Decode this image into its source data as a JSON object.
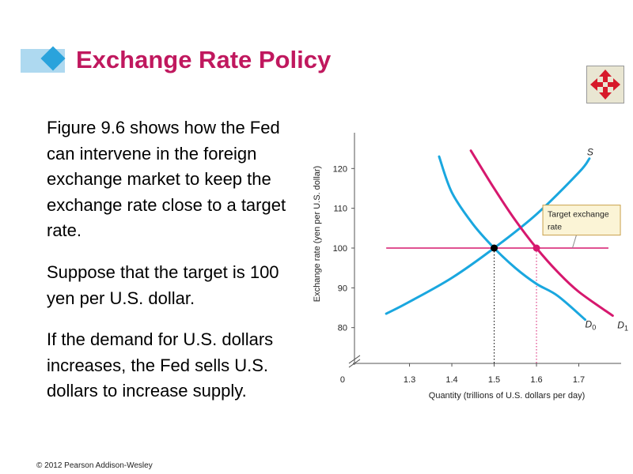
{
  "slide": {
    "title": "Exchange Rate Policy",
    "paragraphs": [
      "Figure 9.6 shows how the Fed can intervene in the foreign exchange market to keep the exchange rate close to a target rate.",
      "Suppose that the target is 100 yen per U.S. dollar.",
      "If the demand for U.S. dollars increases, the Fed sells U.S. dollars to increase supply."
    ],
    "copyright": "© 2012 Pearson Addison-Wesley",
    "nav_icon": "four-way-arrow-icon"
  },
  "colors": {
    "title": "#c0185e",
    "title_bar": "#aed9f0",
    "title_diamond": "#2aa3dc",
    "supply_demand0": "#1aa7df",
    "demand1_target": "#d6186e",
    "callout_bg": "#fbf4d6",
    "callout_border": "#c9a04a",
    "nav_icon": "#d7192a"
  },
  "chart_data": {
    "type": "line",
    "xlabel": "Quantity (trillions of U.S. dollars per day)",
    "ylabel": "Exchange rate (yen per U.S. dollar)",
    "x_ticks": [
      1.3,
      1.4,
      1.5,
      1.6,
      1.7
    ],
    "x_tick_labels": [
      "1.3",
      "1.4",
      "1.5",
      "1.6",
      "1.7"
    ],
    "y_ticks": [
      80,
      90,
      100,
      110,
      120
    ],
    "y_tick_labels": [
      "80",
      "90",
      "100",
      "110",
      "120"
    ],
    "origin_label": "0",
    "grid": false,
    "series": [
      {
        "name": "S",
        "color": "#1aa7df",
        "x": [
          1.245,
          1.3,
          1.4,
          1.5,
          1.6,
          1.7,
          1.725
        ],
        "y": [
          83.5,
          86.5,
          92.5,
          100,
          108.5,
          119,
          122.5
        ]
      },
      {
        "name": "D0",
        "color": "#1aa7df",
        "x": [
          1.37,
          1.4,
          1.45,
          1.5,
          1.55,
          1.6,
          1.65,
          1.715
        ],
        "y": [
          123,
          114,
          106,
          100,
          95,
          91,
          88,
          82
        ]
      },
      {
        "name": "D1",
        "color": "#d6186e",
        "x": [
          1.445,
          1.5,
          1.55,
          1.6,
          1.65,
          1.7,
          1.78
        ],
        "y": [
          124.5,
          115,
          107,
          100,
          94,
          89,
          83
        ]
      }
    ],
    "series_labels": [
      {
        "series": "S",
        "text": "S",
        "sub": ""
      },
      {
        "series": "D1",
        "text": "D",
        "sub": "1"
      },
      {
        "series": "D0",
        "text": "D",
        "sub": "0"
      }
    ],
    "target_line": {
      "y": 100,
      "x_range": [
        1.245,
        1.77
      ],
      "color": "#d6186e"
    },
    "points": [
      {
        "x": 1.5,
        "y": 100,
        "color": "#000000"
      },
      {
        "x": 1.6,
        "y": 100,
        "color": "#d6186e"
      }
    ],
    "dropline_x": [
      1.5,
      1.6
    ],
    "callout": {
      "line1": "Target exchange",
      "line2": "rate"
    },
    "xlim": [
      1.17,
      1.8
    ],
    "ylim": [
      71,
      129
    ]
  }
}
